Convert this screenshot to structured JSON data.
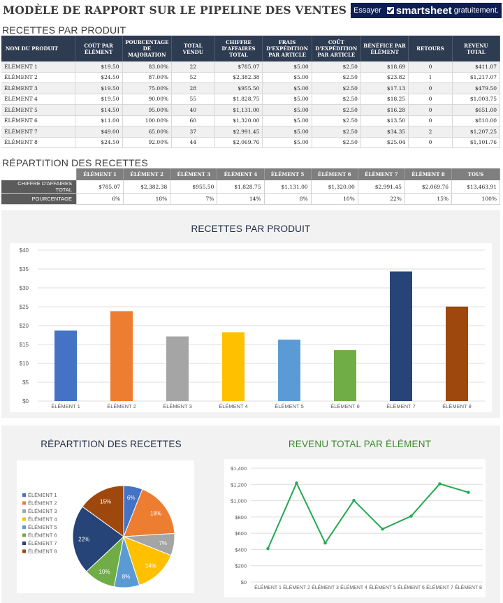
{
  "header": {
    "title": "MODÈLE DE RAPPORT SUR LE PIPELINE DES VENTES AVEC EXE",
    "banner": {
      "pre": "Essayer",
      "brand": "smartsheet",
      "post": "gratuitement."
    }
  },
  "table1": {
    "title": "RECETTES PAR PRODUIT",
    "headers": [
      "NOM DU PRODUIT",
      "COÛT PAR ÉLÉMENT",
      "POURCENTAGE DE MAJORATION",
      "TOTAL VENDU",
      "CHIFFRE D'AFFAIRES TOTAL",
      "FRAIS D'EXPÉDITION PAR ARTICLE",
      "COÛT D'EXPÉDITION PAR ARTICLE",
      "BÉNÉFICE PAR ÉLÉMENT",
      "RETOURS",
      "REVENU TOTAL"
    ],
    "rows": [
      [
        "ÉLÉMENT 1",
        "$19.50",
        "83.00%",
        "22",
        "$785.07",
        "$5.00",
        "$2.50",
        "$18.69",
        "0",
        "$411.07"
      ],
      [
        "ÉLÉMENT 2",
        "$24.50",
        "87.00%",
        "52",
        "$2,382.38",
        "$5.00",
        "$2.50",
        "$23.82",
        "1",
        "$1,217.07"
      ],
      [
        "ÉLÉMENT 3",
        "$19.50",
        "75.00%",
        "28",
        "$955.50",
        "$5.00",
        "$2.50",
        "$17.13",
        "0",
        "$479.50"
      ],
      [
        "ÉLÉMENT 4",
        "$19.50",
        "90.00%",
        "55",
        "$1,828.75",
        "$5.00",
        "$2.50",
        "$18.25",
        "0",
        "$1,003.75"
      ],
      [
        "ÉLÉMENT 5",
        "$14.50",
        "95.00%",
        "40",
        "$1,131.00",
        "$5.00",
        "$2.50",
        "$16.28",
        "0",
        "$651.00"
      ],
      [
        "ÉLÉMENT 6",
        "$11.00",
        "100.00%",
        "60",
        "$1,320.00",
        "$5.00",
        "$2.50",
        "$13.50",
        "0",
        "$810.00"
      ],
      [
        "ÉLÉMENT 7",
        "$49.00",
        "65.00%",
        "37",
        "$2,991.45",
        "$5.00",
        "$2.50",
        "$34.35",
        "2",
        "$1,207.25"
      ],
      [
        "ÉLÉMENT 8",
        "$24.50",
        "92.00%",
        "44",
        "$2,069.76",
        "$5.00",
        "$2.50",
        "$25.04",
        "0",
        "$1,101.76"
      ]
    ]
  },
  "table2": {
    "title": "RÉPARTITION DES RECETTES",
    "headers": [
      "ÉLÉMENT 1",
      "ÉLÉMENT 2",
      "ÉLÉMENT 3",
      "ÉLÉMENT 4",
      "ÉLÉMENT 5",
      "ÉLÉMENT 6",
      "ÉLÉMENT 7",
      "ÉLÉMENT 8",
      "TOUS"
    ],
    "rows": [
      {
        "label": "CHIFFRE D'AFFAIRES TOTAL",
        "values": [
          "$785.07",
          "$2,382.38",
          "$955.50",
          "$1,828.75",
          "$1,131.00",
          "$1,320.00",
          "$2,991.45",
          "$2,069.76",
          "$13,463.91"
        ]
      },
      {
        "label": "POURCENTAGE",
        "values": [
          "6%",
          "18%",
          "7%",
          "14%",
          "8%",
          "10%",
          "22%",
          "15%",
          "100%"
        ]
      }
    ]
  },
  "chart_data": [
    {
      "type": "bar",
      "title": "RECETTES PAR PRODUIT",
      "categories": [
        "ÉLÉMENT 1",
        "ÉLÉMENT 2",
        "ÉLÉMENT 3",
        "ÉLÉMENT 4",
        "ÉLÉMENT 5",
        "ÉLÉMENT 6",
        "ÉLÉMENT 7",
        "ÉLÉMENT 8"
      ],
      "values": [
        18.69,
        23.82,
        17.13,
        18.25,
        16.28,
        13.5,
        34.35,
        25.04
      ],
      "colors": [
        "#4472c4",
        "#ed7d31",
        "#a5a5a5",
        "#ffc000",
        "#5b9bd5",
        "#70ad47",
        "#264478",
        "#9e480e"
      ],
      "ylim": [
        0,
        40
      ],
      "yticks": [
        "$0",
        "$5",
        "$10",
        "$15",
        "$20",
        "$25",
        "$30",
        "$35",
        "$40"
      ],
      "grid": true
    },
    {
      "type": "pie",
      "title": "RÉPARTITION DES RECETTES",
      "categories": [
        "ÉLÉMENT 1",
        "ÉLÉMENT 2",
        "ÉLÉMENT 3",
        "ÉLÉMENT 4",
        "ÉLÉMENT 5",
        "ÉLÉMENT 6",
        "ÉLÉMENT 7",
        "ÉLÉMENT 8"
      ],
      "values": [
        6,
        18,
        7,
        14,
        8,
        10,
        22,
        15
      ],
      "labels": [
        "6%",
        "18%",
        "7%",
        "14%",
        "8%",
        "10%",
        "22%",
        "15%"
      ],
      "colors": [
        "#4472c4",
        "#ed7d31",
        "#a5a5a5",
        "#ffc000",
        "#5b9bd5",
        "#70ad47",
        "#264478",
        "#9e480e"
      ],
      "legend": "left"
    },
    {
      "type": "line",
      "title": "REVENU TOTAL PAR ÉLÉMENT",
      "categories": [
        "ÉLÉMENT 1",
        "ÉLÉMENT 2",
        "ÉLÉMENT 3",
        "ÉLÉMENT 4",
        "ÉLÉMENT 5",
        "ÉLÉMENT 6",
        "ÉLÉMENT 7",
        "ÉLÉMENT 8"
      ],
      "values": [
        411.07,
        1217.07,
        479.5,
        1003.75,
        651.0,
        810.0,
        1207.25,
        1101.76
      ],
      "color": "#22a950",
      "ylim": [
        0,
        1400
      ],
      "yticks": [
        "$0",
        "$200",
        "$400",
        "$600",
        "$800",
        "$1,000",
        "$1,200",
        "$1,400"
      ],
      "grid": true
    }
  ]
}
